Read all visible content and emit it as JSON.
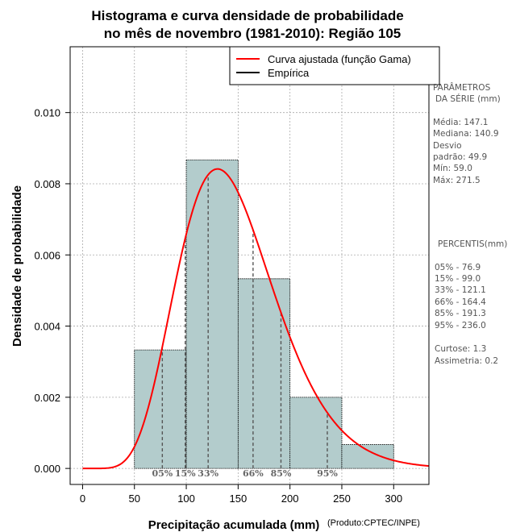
{
  "chart_data": {
    "type": "bar",
    "title_line1": "Histograma e curva densidade de probabilidade",
    "title_line2": "no mês de novembro (1981-2010): Região 105",
    "xlabel": "Precipitação acumulada (mm)",
    "ylabel": "Densidade de probabilidade",
    "credit": "(Produto:CPTEC/INPE)",
    "xlim": [
      -12,
      334
    ],
    "ylim": [
      -0.00045,
      0.01185
    ],
    "x_ticks": [
      0,
      50,
      100,
      150,
      200,
      250,
      300
    ],
    "x_tick_labels": [
      "0",
      "50",
      "100",
      "150",
      "200",
      "250",
      "300"
    ],
    "y_ticks": [
      0.0,
      0.002,
      0.004,
      0.006,
      0.008,
      0.01
    ],
    "y_tick_labels": [
      "0.000",
      "0.002",
      "0.004",
      "0.006",
      "0.008",
      "0.010"
    ],
    "grid": true,
    "bins": [
      {
        "x0": 50,
        "x1": 100,
        "density": 0.00333
      },
      {
        "x0": 100,
        "x1": 150,
        "density": 0.00867
      },
      {
        "x0": 150,
        "x1": 200,
        "density": 0.00533
      },
      {
        "x0": 200,
        "x1": 250,
        "density": 0.002
      },
      {
        "x0": 250,
        "x1": 300,
        "density": 0.00067
      }
    ],
    "fit": {
      "distribution": "gamma",
      "shape": 8.7,
      "scale": 16.9,
      "x_range": [
        0,
        334
      ],
      "color": "#ff0000"
    },
    "bar_color": "#b3cccc",
    "percentile_lines": [
      {
        "label": "05%",
        "x": 76.9
      },
      {
        "label": "15%",
        "x": 99.0
      },
      {
        "label": "33%",
        "x": 121.1
      },
      {
        "label": "66%",
        "x": 164.4
      },
      {
        "label": "85%",
        "x": 191.3
      },
      {
        "label": "95%",
        "x": 236.0
      }
    ],
    "legend": [
      {
        "label": "Curva ajustada (função Gama)",
        "color": "#ff0000"
      },
      {
        "label": "Empírica",
        "color": "#000000"
      }
    ]
  },
  "side_panel": {
    "params_title_1": "PARÂMETROS",
    "params_title_2": "DA SÉRIE (mm)",
    "params": [
      "Média:  147.1",
      "Mediana:  140.9",
      "Desvio",
      "padrão:  49.9",
      "Mín:  59.0",
      "Máx:  271.5"
    ],
    "percentis_title": "PERCENTIS(mm)",
    "percentis": [
      "05% -  76.9",
      "15% -  99.0",
      "33% -  121.1",
      "66% -  164.4",
      "85% -  191.3",
      "95% -  236.0"
    ],
    "stats": [
      "Curtose:  1.3",
      "Assimetria:  0.2"
    ]
  }
}
